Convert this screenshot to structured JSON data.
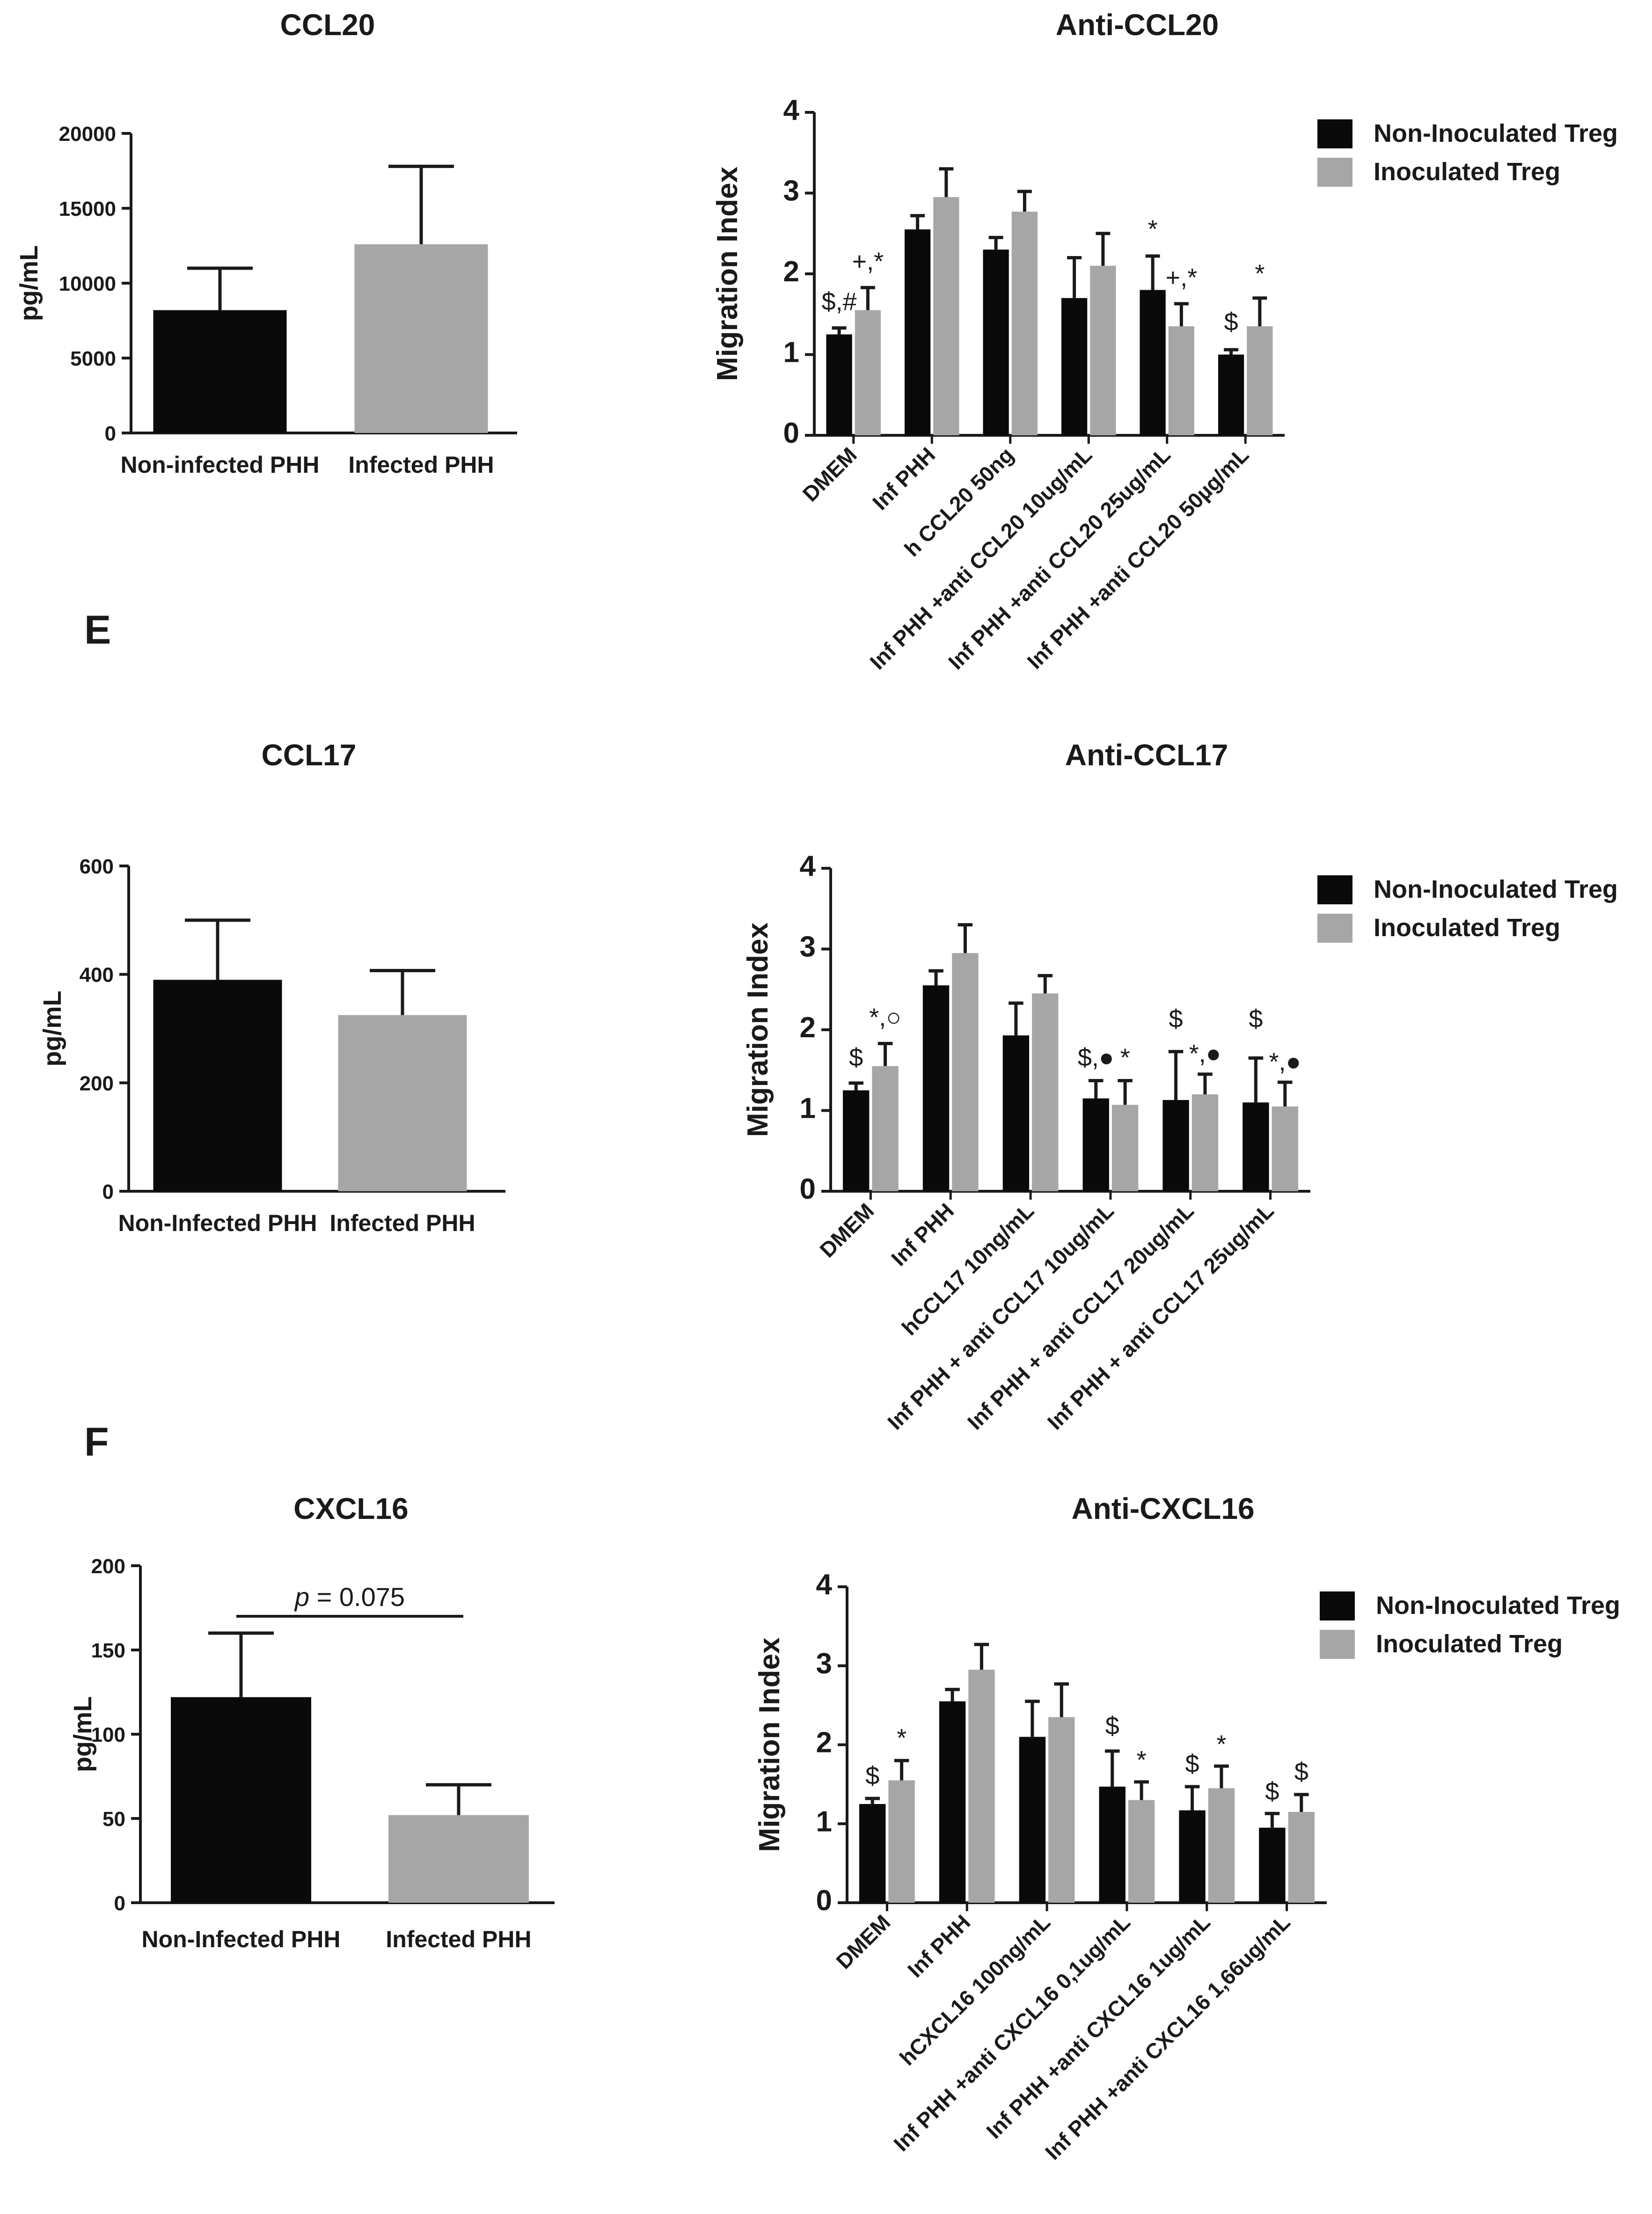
{
  "panel_labels": [
    "E",
    "F"
  ],
  "colors": {
    "non_inoculated": "#0a0a0a",
    "inoculated": "#a6a6a6",
    "axis": "#1a1a1a"
  },
  "chart_data": [
    {
      "id": "ccl20",
      "type": "bar",
      "title": "CCL20",
      "ylabel": "pg/mL",
      "ylim": [
        0,
        20000
      ],
      "yticks": [
        0,
        5000,
        10000,
        15000,
        20000
      ],
      "categories": [
        "Non-infected PHH",
        "Infected PHH"
      ],
      "values": [
        8200,
        12600
      ],
      "errors": [
        2800,
        5200
      ],
      "bar_colors": [
        "#0a0a0a",
        "#a6a6a6"
      ]
    },
    {
      "id": "anti-ccl20",
      "type": "bar",
      "title": "Anti-CCL20",
      "ylabel": "Migration Index",
      "ylim": [
        0,
        4
      ],
      "yticks": [
        0,
        1,
        2,
        3,
        4
      ],
      "categories": [
        "DMEM",
        "Inf PHH",
        "h CCL20 50ng",
        "Inf PHH +anti CCL20 10ug/mL",
        "Inf PHH +anti CCL20 25ug/mL",
        "Inf PHH +anti CCL20 50µg/mL"
      ],
      "series": [
        {
          "name": "Non-Inoculated Treg",
          "values": [
            1.25,
            2.55,
            2.3,
            1.7,
            1.8,
            1.0
          ],
          "errors": [
            0.08,
            0.17,
            0.15,
            0.5,
            0.42,
            0.06
          ]
        },
        {
          "name": "Inoculated Treg",
          "values": [
            1.55,
            2.95,
            2.77,
            2.1,
            1.35,
            1.35
          ],
          "errors": [
            0.28,
            0.35,
            0.25,
            0.4,
            0.28,
            0.35
          ]
        }
      ],
      "annotations": [
        {
          "text": "$,#",
          "category": 0,
          "series": 0,
          "level": 1.55
        },
        {
          "text": "+,*",
          "category": 0,
          "series": 1,
          "level": 2.05
        },
        {
          "text": "*",
          "category": 4,
          "series": 0,
          "level": 2.45
        },
        {
          "text": "+,*",
          "category": 4,
          "series": 1,
          "level": 1.85
        },
        {
          "text": "$",
          "category": 5,
          "series": 0,
          "level": 1.3
        },
        {
          "text": "*",
          "category": 5,
          "series": 1,
          "level": 1.9
        }
      ]
    },
    {
      "id": "ccl17",
      "type": "bar",
      "title": "CCL17",
      "ylabel": "pg/mL",
      "ylim": [
        0,
        600
      ],
      "yticks": [
        0,
        200,
        400,
        600
      ],
      "categories": [
        "Non-Infected PHH",
        "Infected PHH"
      ],
      "values": [
        390,
        325
      ],
      "errors": [
        110,
        82
      ],
      "bar_colors": [
        "#0a0a0a",
        "#a6a6a6"
      ]
    },
    {
      "id": "anti-ccl17",
      "type": "bar",
      "title": "Anti-CCL17",
      "ylabel": "Migration Index",
      "ylim": [
        0,
        4
      ],
      "yticks": [
        0,
        1,
        2,
        3,
        4
      ],
      "categories": [
        "DMEM",
        "Inf PHH",
        "hCCL17 10ng/mL",
        "Inf PHH + anti CCL17 10ug/mL",
        "Inf PHH + anti CCL17 20ug/mL",
        "Inf PHH + anti CCL17 25ug/mL"
      ],
      "series": [
        {
          "name": "Non-Inoculated Treg",
          "values": [
            1.25,
            2.55,
            1.93,
            1.15,
            1.13,
            1.1
          ],
          "errors": [
            0.09,
            0.18,
            0.4,
            0.22,
            0.6,
            0.55
          ]
        },
        {
          "name": "Inoculated Treg",
          "values": [
            1.55,
            2.95,
            2.45,
            1.07,
            1.2,
            1.05
          ],
          "errors": [
            0.28,
            0.35,
            0.22,
            0.3,
            0.25,
            0.3
          ]
        }
      ],
      "annotations": [
        {
          "text": "$",
          "category": 0,
          "series": 0,
          "level": 1.55
        },
        {
          "text": "*,○",
          "category": 0,
          "series": 1,
          "level": 2.05
        },
        {
          "text": "$,●",
          "category": 3,
          "series": 0,
          "level": 1.55
        },
        {
          "text": "*",
          "category": 3,
          "series": 1,
          "level": 1.55
        },
        {
          "text": "$",
          "category": 4,
          "series": 0,
          "level": 2.03
        },
        {
          "text": "*,●",
          "category": 4,
          "series": 1,
          "level": 1.6
        },
        {
          "text": "$",
          "category": 5,
          "series": 0,
          "level": 2.03
        },
        {
          "text": "*,●",
          "category": 5,
          "series": 1,
          "level": 1.5
        }
      ]
    },
    {
      "id": "cxcl16",
      "type": "bar",
      "title": "CXCL16",
      "ylabel": "pg/mL",
      "ylim": [
        0,
        200
      ],
      "yticks": [
        0,
        50,
        100,
        150,
        200
      ],
      "categories": [
        "Non-Infected PHH",
        "Infected PHH"
      ],
      "values": [
        122,
        52
      ],
      "errors": [
        38,
        18
      ],
      "bar_colors": [
        "#0a0a0a",
        "#a6a6a6"
      ],
      "bracket": {
        "italic": "p",
        "rest": " = 0.075",
        "level": 170
      }
    },
    {
      "id": "anti-cxcl16",
      "type": "bar",
      "title": "Anti-CXCL16",
      "ylabel": "Migration Index",
      "ylim": [
        0,
        4
      ],
      "yticks": [
        0,
        1,
        2,
        3,
        4
      ],
      "categories": [
        "DMEM",
        "Inf PHH",
        "hCXCL16 100ng/mL",
        "Inf PHH +anti CXCL16 0,1ug/mL",
        "Inf PHH +anti CXCL16 1ug/mL",
        "Inf PHH +anti CXCL16 1,66ug/mL"
      ],
      "series": [
        {
          "name": "Non-Inoculated Treg",
          "values": [
            1.25,
            2.55,
            2.1,
            1.47,
            1.17,
            0.95
          ],
          "errors": [
            0.07,
            0.15,
            0.45,
            0.45,
            0.3,
            0.18
          ]
        },
        {
          "name": "Inoculated Treg",
          "values": [
            1.55,
            2.95,
            2.35,
            1.3,
            1.45,
            1.15
          ],
          "errors": [
            0.25,
            0.32,
            0.42,
            0.23,
            0.28,
            0.22
          ]
        }
      ],
      "annotations": [
        {
          "text": "$",
          "category": 0,
          "series": 0,
          "level": 1.5
        },
        {
          "text": "*",
          "category": 0,
          "series": 1,
          "level": 1.98
        },
        {
          "text": "$",
          "category": 3,
          "series": 0,
          "level": 2.13
        },
        {
          "text": "*",
          "category": 3,
          "series": 1,
          "level": 1.7
        },
        {
          "text": "$",
          "category": 4,
          "series": 0,
          "level": 1.65
        },
        {
          "text": "*",
          "category": 4,
          "series": 1,
          "level": 1.9
        },
        {
          "text": "$",
          "category": 5,
          "series": 0,
          "level": 1.3
        },
        {
          "text": "$",
          "category": 5,
          "series": 1,
          "level": 1.55
        }
      ]
    }
  ]
}
